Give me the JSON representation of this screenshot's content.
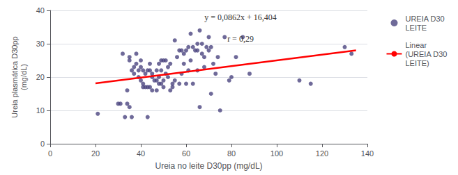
{
  "chart_data": {
    "type": "scatter",
    "xlabel": "Ureia no leite D30pp (mg/dL)",
    "ylabel": "Ureia plasmática D30pp\n(mg/dL)",
    "xlim": [
      0,
      140
    ],
    "ylim": [
      0,
      40
    ],
    "xticks": [
      0,
      20,
      40,
      60,
      80,
      100,
      120,
      140
    ],
    "yticks": [
      0,
      10,
      20,
      30,
      40
    ],
    "grid": "y",
    "legend": "right",
    "annotations": [
      "y = 0,0862x + 16,404",
      "r = 0,29"
    ],
    "series": [
      {
        "name": "UREIA D30\nLEITE",
        "type": "scatter",
        "color": "#4B4580",
        "marker": "circle",
        "x": [
          21,
          30,
          31,
          32,
          33,
          34,
          34,
          35,
          35,
          35,
          36,
          36,
          37,
          37,
          38,
          38,
          39,
          39,
          40,
          40,
          40,
          41,
          41,
          41,
          42,
          42,
          43,
          43,
          43,
          44,
          44,
          44,
          45,
          45,
          45,
          46,
          47,
          47,
          47,
          48,
          48,
          48,
          49,
          49,
          49,
          50,
          50,
          50,
          51,
          51,
          52,
          52,
          53,
          53,
          54,
          54,
          55,
          55,
          56,
          57,
          57,
          58,
          58,
          59,
          59,
          60,
          60,
          61,
          61,
          62,
          62,
          63,
          63,
          64,
          65,
          65,
          65,
          66,
          66,
          67,
          67,
          68,
          68,
          69,
          70,
          70,
          71,
          71,
          72,
          73,
          74,
          75,
          77,
          79,
          80,
          82,
          85,
          88,
          110,
          115,
          130,
          133
        ],
        "values": [
          9,
          12,
          12,
          27,
          8,
          12,
          16,
          25,
          26,
          11,
          8,
          22,
          23,
          21,
          24,
          27,
          20,
          22,
          19,
          23,
          25,
          17,
          18,
          22,
          17,
          21,
          8,
          17,
          22,
          22,
          24,
          17,
          20,
          21,
          16,
          19,
          16,
          22,
          19,
          18,
          20,
          24,
          18,
          25,
          22,
          19,
          17,
          25,
          21,
          25,
          20,
          23,
          16,
          24,
          17,
          18,
          19,
          31,
          26,
          28,
          18,
          28,
          21,
          24,
          27,
          18,
          28,
          29,
          22,
          33,
          25,
          29,
          18,
          28,
          28,
          30,
          22,
          34,
          11,
          30,
          27,
          26,
          23,
          29,
          32,
          28,
          15,
          29,
          24,
          21,
          26,
          10,
          32,
          19,
          20,
          26,
          32,
          21,
          19,
          18,
          29,
          27
        ]
      },
      {
        "name": "Linear\n(UREIA D30\nLEITE)",
        "type": "line",
        "color": "#FF0000",
        "line_style": "solid",
        "x": [
          20,
          135
        ],
        "values": [
          18.128,
          28.041
        ]
      }
    ]
  }
}
